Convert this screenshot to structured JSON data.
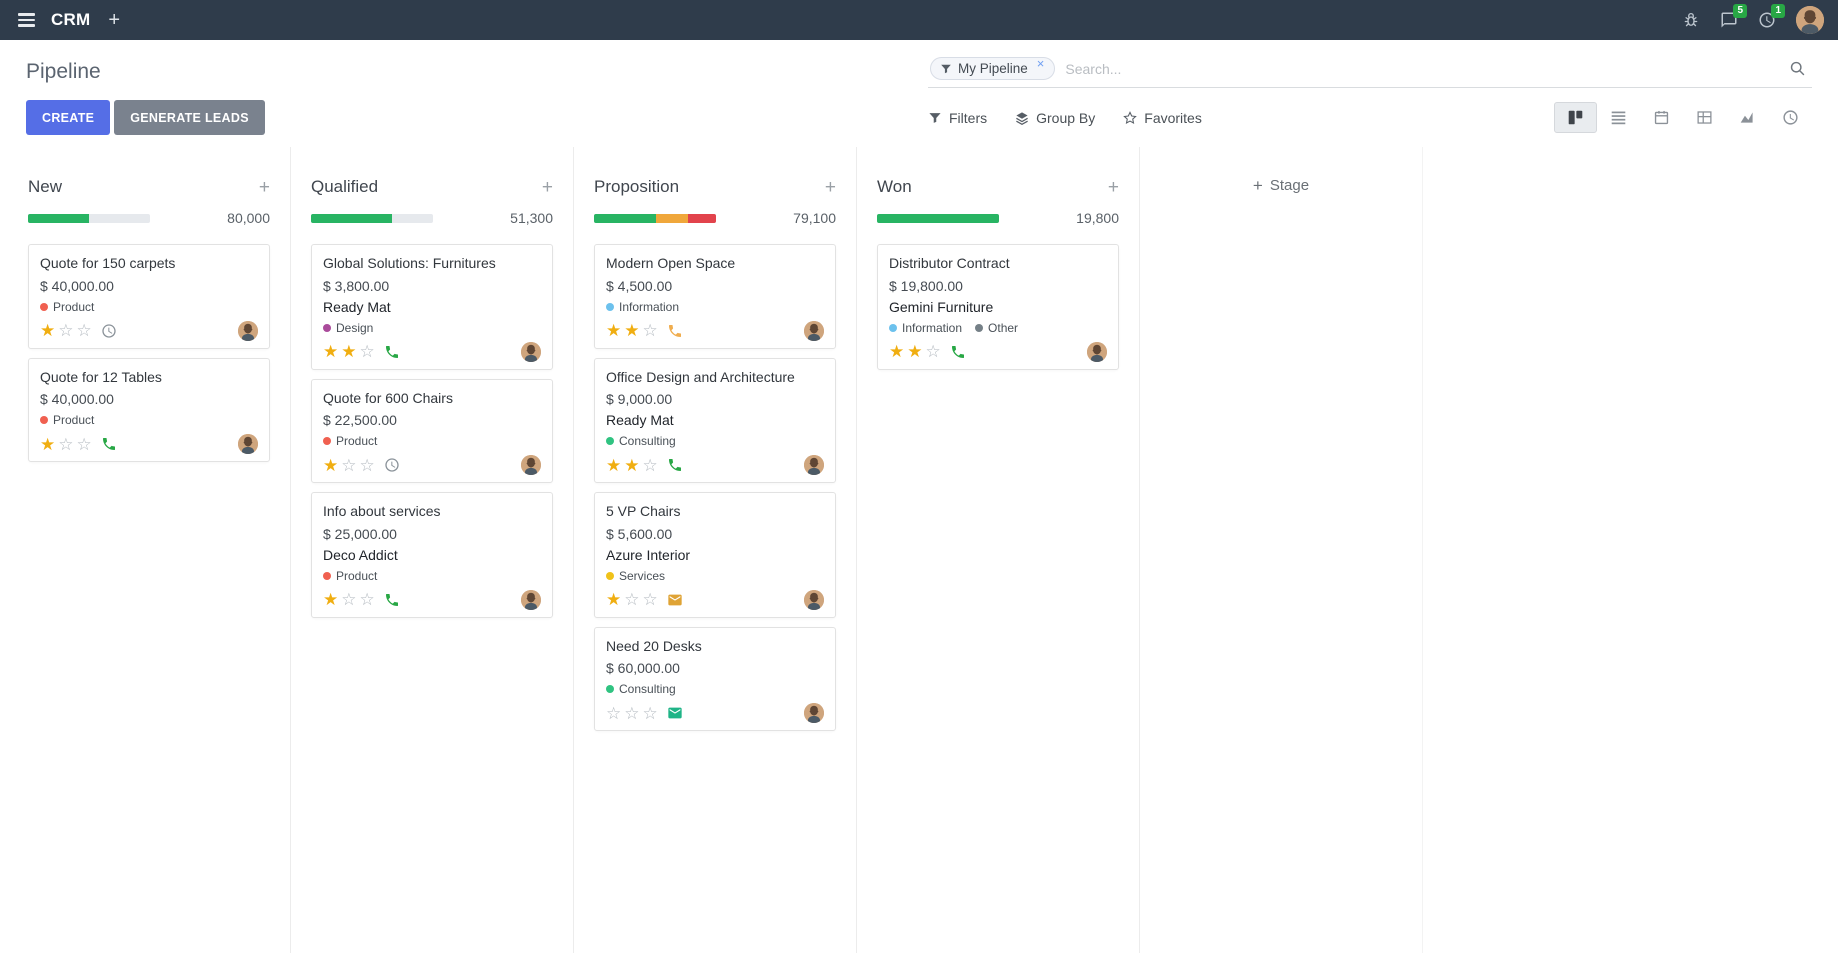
{
  "topbar": {
    "app_name": "CRM",
    "messages_badge": "5",
    "activities_badge": "1"
  },
  "control_panel": {
    "title": "Pipeline",
    "create_label": "CREATE",
    "generate_leads_label": "GENERATE LEADS",
    "filters_label": "Filters",
    "group_by_label": "Group By",
    "favorites_label": "Favorites",
    "search": {
      "facet": "My Pipeline",
      "placeholder": "Search...",
      "remove_symbol": "×"
    },
    "view_switcher": {
      "active": "kanban",
      "views": [
        "kanban",
        "list",
        "calendar",
        "pivot",
        "graph",
        "activity"
      ]
    }
  },
  "board": {
    "add_stage_label": "Stage",
    "columns": [
      {
        "name": "New",
        "total": "80,000",
        "progress": [
          {
            "status": "success",
            "color": "#28b463",
            "pct": 50
          }
        ],
        "cards": [
          {
            "title": "Quote for 150 carpets",
            "amount": "$ 40,000.00",
            "partner": null,
            "tags": [
              {
                "label": "Product",
                "color": "#f06050"
              }
            ],
            "stars": 1,
            "activity": {
              "icon": "clock-icon",
              "color": "#8a9299"
            }
          },
          {
            "title": "Quote for 12 Tables",
            "amount": "$ 40,000.00",
            "partner": null,
            "tags": [
              {
                "label": "Product",
                "color": "#f06050"
              }
            ],
            "stars": 1,
            "activity": {
              "icon": "phone-icon",
              "color": "#28a745"
            }
          }
        ]
      },
      {
        "name": "Qualified",
        "total": "51,300",
        "progress": [
          {
            "status": "success",
            "color": "#28b463",
            "pct": 66
          }
        ],
        "cards": [
          {
            "title": "Global Solutions: Furnitures",
            "amount": "$ 3,800.00",
            "partner": "Ready Mat",
            "tags": [
              {
                "label": "Design",
                "color": "#aa4b9b"
              }
            ],
            "stars": 2,
            "activity": {
              "icon": "phone-icon",
              "color": "#28a745"
            }
          },
          {
            "title": "Quote for 600 Chairs",
            "amount": "$ 22,500.00",
            "partner": null,
            "tags": [
              {
                "label": "Product",
                "color": "#f06050"
              }
            ],
            "stars": 1,
            "activity": {
              "icon": "clock-icon",
              "color": "#8a9299"
            }
          },
          {
            "title": "Info about services",
            "amount": "$ 25,000.00",
            "partner": "Deco Addict",
            "tags": [
              {
                "label": "Product",
                "color": "#f06050"
              }
            ],
            "stars": 1,
            "activity": {
              "icon": "phone-icon",
              "color": "#28a745"
            }
          }
        ]
      },
      {
        "name": "Proposition",
        "total": "79,100",
        "progress": [
          {
            "status": "success",
            "color": "#28b463",
            "pct": 51
          },
          {
            "status": "warning",
            "color": "#f0a73b",
            "pct": 26
          },
          {
            "status": "danger",
            "color": "#e2434c",
            "pct": 23
          }
        ],
        "cards": [
          {
            "title": "Modern Open Space",
            "amount": "$ 4,500.00",
            "partner": null,
            "tags": [
              {
                "label": "Information",
                "color": "#6cc1ed"
              }
            ],
            "stars": 2,
            "activity": {
              "icon": "phone-icon",
              "color": "#f0ad4e"
            }
          },
          {
            "title": "Office Design and Architecture",
            "amount": "$ 9,000.00",
            "partner": "Ready Mat",
            "tags": [
              {
                "label": "Consulting",
                "color": "#30c381"
              }
            ],
            "stars": 2,
            "activity": {
              "icon": "phone-icon",
              "color": "#28a745"
            }
          },
          {
            "title": "5 VP Chairs",
            "amount": "$ 5,600.00",
            "partner": "Azure Interior",
            "tags": [
              {
                "label": "Services",
                "color": "#f0c219"
              }
            ],
            "stars": 1,
            "activity": {
              "icon": "envelope-icon",
              "color": "#dfa335"
            }
          },
          {
            "title": "Need 20 Desks",
            "amount": "$ 60,000.00",
            "partner": null,
            "tags": [
              {
                "label": "Consulting",
                "color": "#30c381"
              }
            ],
            "stars": 0,
            "activity": {
              "icon": "envelope-icon",
              "color": "#1fb487"
            }
          }
        ]
      },
      {
        "name": "Won",
        "total": "19,800",
        "progress": [
          {
            "status": "success",
            "color": "#28b463",
            "pct": 100
          }
        ],
        "cards": [
          {
            "title": "Distributor Contract",
            "amount": "$ 19,800.00",
            "partner": "Gemini Furniture",
            "tags": [
              {
                "label": "Information",
                "color": "#6cc1ed"
              },
              {
                "label": "Other",
                "color": "#758087"
              }
            ],
            "stars": 2,
            "activity": {
              "icon": "phone-icon",
              "color": "#28a745"
            }
          }
        ]
      }
    ]
  }
}
